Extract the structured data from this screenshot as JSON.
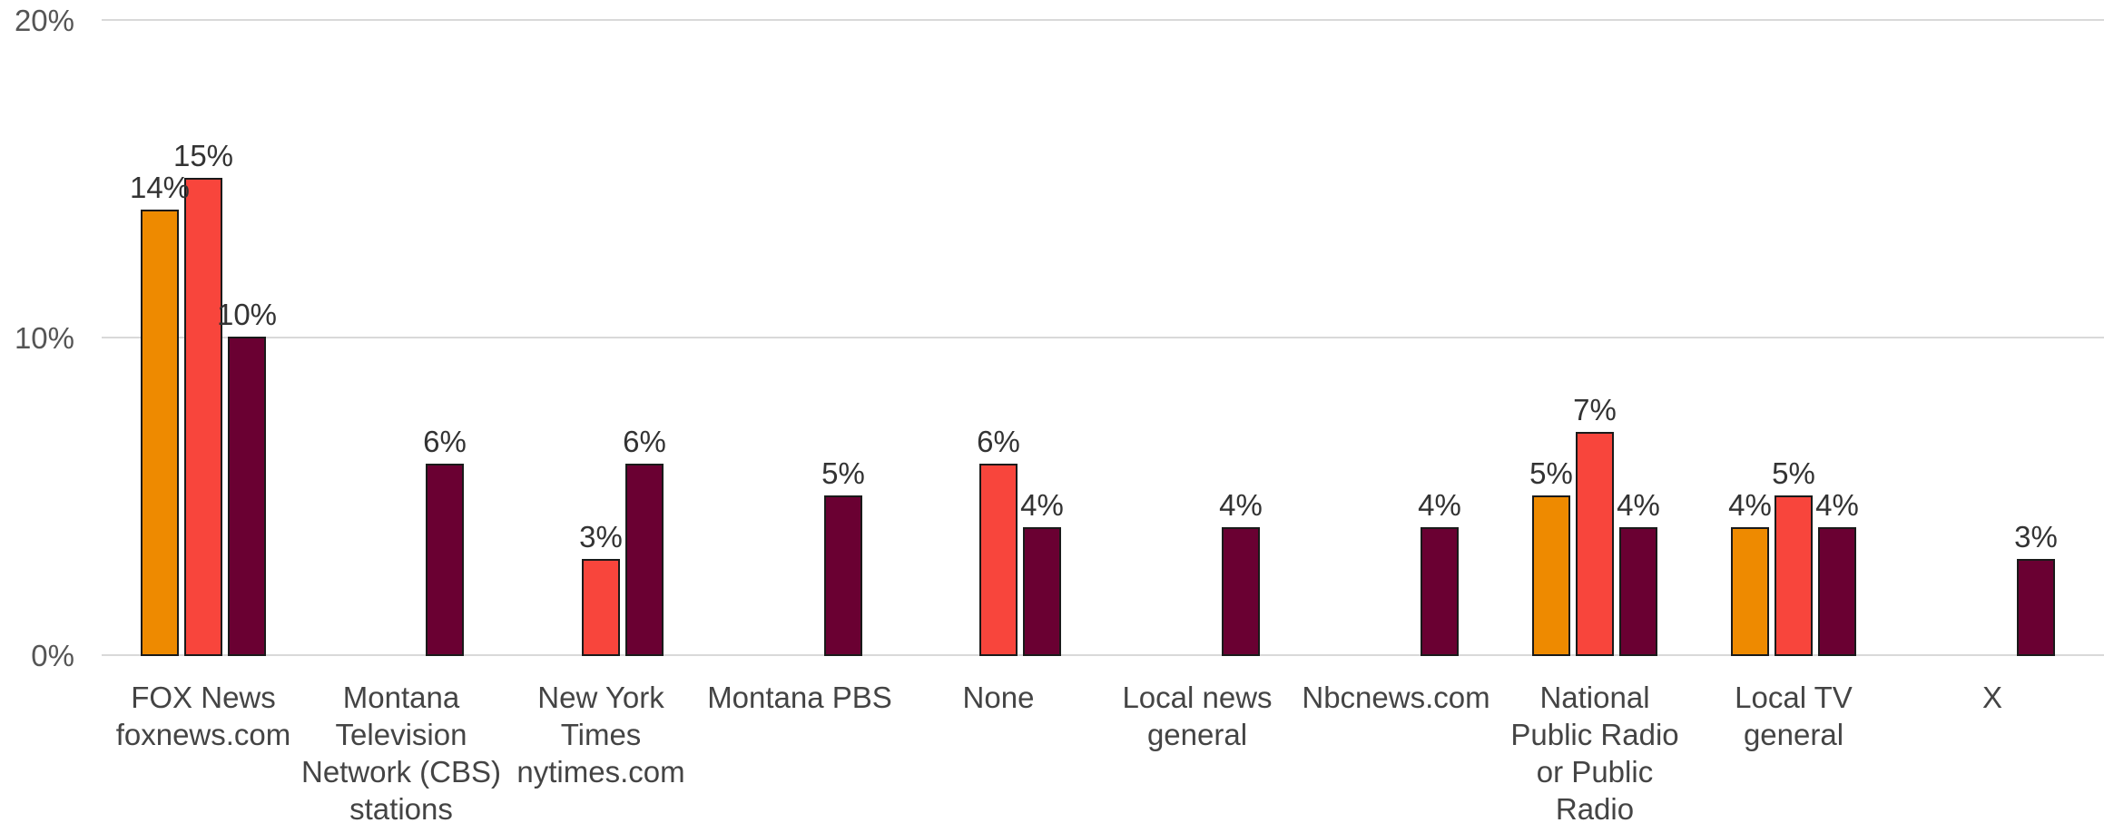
{
  "chart_data": {
    "type": "bar",
    "title": "",
    "xlabel": "",
    "ylabel": "",
    "ylim": [
      0,
      20
    ],
    "yticks": [
      "0%",
      "10%",
      "20%"
    ],
    "grid": true,
    "legend": "none",
    "categories": [
      [
        "FOX News",
        "foxnews.com"
      ],
      [
        "Montana",
        "Television",
        "Network (CBS)",
        "stations"
      ],
      [
        "New York",
        "Times",
        "nytimes.com"
      ],
      [
        "Montana PBS"
      ],
      [
        "None"
      ],
      [
        "Local news",
        "general"
      ],
      [
        "Nbcnews.com"
      ],
      [
        "National",
        "Public Radio",
        "or Public",
        "Radio"
      ],
      [
        "Local TV",
        "general"
      ],
      [
        "X"
      ]
    ],
    "series": [
      {
        "color": "#ee8a00",
        "values": [
          14,
          null,
          null,
          null,
          null,
          null,
          null,
          5,
          4,
          null
        ],
        "labels": [
          "14%",
          "",
          "",
          "",
          "",
          "",
          "",
          "5%",
          "4%",
          ""
        ]
      },
      {
        "color": "#f8453c",
        "values": [
          15,
          null,
          3,
          null,
          6,
          null,
          null,
          7,
          5,
          null
        ],
        "labels": [
          "15%",
          "",
          "3%",
          "",
          "6%",
          "",
          "",
          "7%",
          "5%",
          ""
        ]
      },
      {
        "color": "#6a0032",
        "values": [
          10,
          6,
          6,
          5,
          4,
          4,
          4,
          4,
          4,
          3
        ],
        "labels": [
          "10%",
          "6%",
          "6%",
          "5%",
          "4%",
          "4%",
          "4%",
          "4%",
          "4%",
          "3%"
        ]
      }
    ]
  }
}
